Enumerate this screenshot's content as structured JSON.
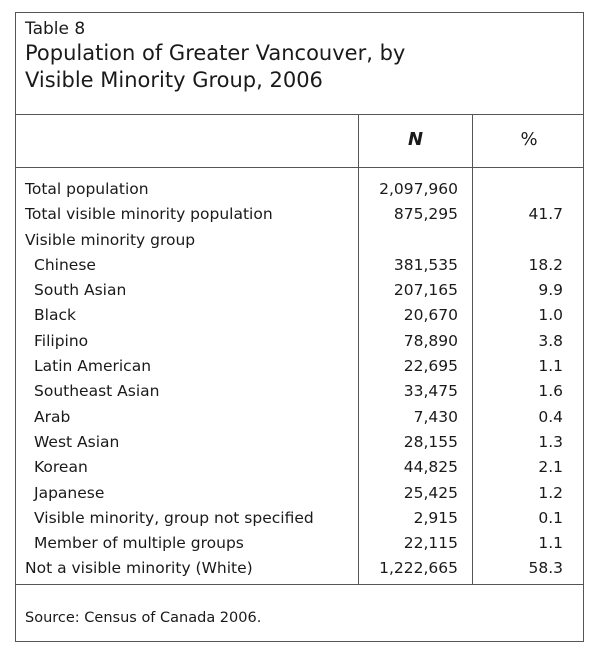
{
  "table": {
    "label": "Table 8",
    "title": "Population of Greater Vancouver, by Visible Minority Group, 2006",
    "columns": [
      "",
      "N",
      "%"
    ],
    "rows": [
      {
        "label": "Total population",
        "n": "2,097,960",
        "pct": "",
        "indent": false
      },
      {
        "label": "Total visible minority population",
        "n": "875,295",
        "pct": "41.7",
        "indent": false
      },
      {
        "label": "Visible minority group",
        "n": "",
        "pct": "",
        "indent": false
      },
      {
        "label": "Chinese",
        "n": "381,535",
        "pct": "18.2",
        "indent": true
      },
      {
        "label": "South Asian",
        "n": "207,165",
        "pct": "9.9",
        "indent": true
      },
      {
        "label": "Black",
        "n": "20,670",
        "pct": "1.0",
        "indent": true
      },
      {
        "label": "Filipino",
        "n": "78,890",
        "pct": "3.8",
        "indent": true
      },
      {
        "label": "Latin American",
        "n": "22,695",
        "pct": "1.1",
        "indent": true
      },
      {
        "label": "Southeast Asian",
        "n": "33,475",
        "pct": "1.6",
        "indent": true
      },
      {
        "label": "Arab",
        "n": "7,430",
        "pct": "0.4",
        "indent": true
      },
      {
        "label": "West Asian",
        "n": "28,155",
        "pct": "1.3",
        "indent": true
      },
      {
        "label": "Korean",
        "n": "44,825",
        "pct": "2.1",
        "indent": true
      },
      {
        "label": "Japanese",
        "n": "25,425",
        "pct": "1.2",
        "indent": true
      },
      {
        "label": "Visible minority, group not specified",
        "n": "2,915",
        "pct": "0.1",
        "indent": true
      },
      {
        "label": "Member of multiple groups",
        "n": "22,115",
        "pct": "1.1",
        "indent": true
      },
      {
        "label": "Not a visible minority (White)",
        "n": "1,222,665",
        "pct": "58.3",
        "indent": false
      }
    ],
    "source": "Source: Census of Canada 2006."
  }
}
